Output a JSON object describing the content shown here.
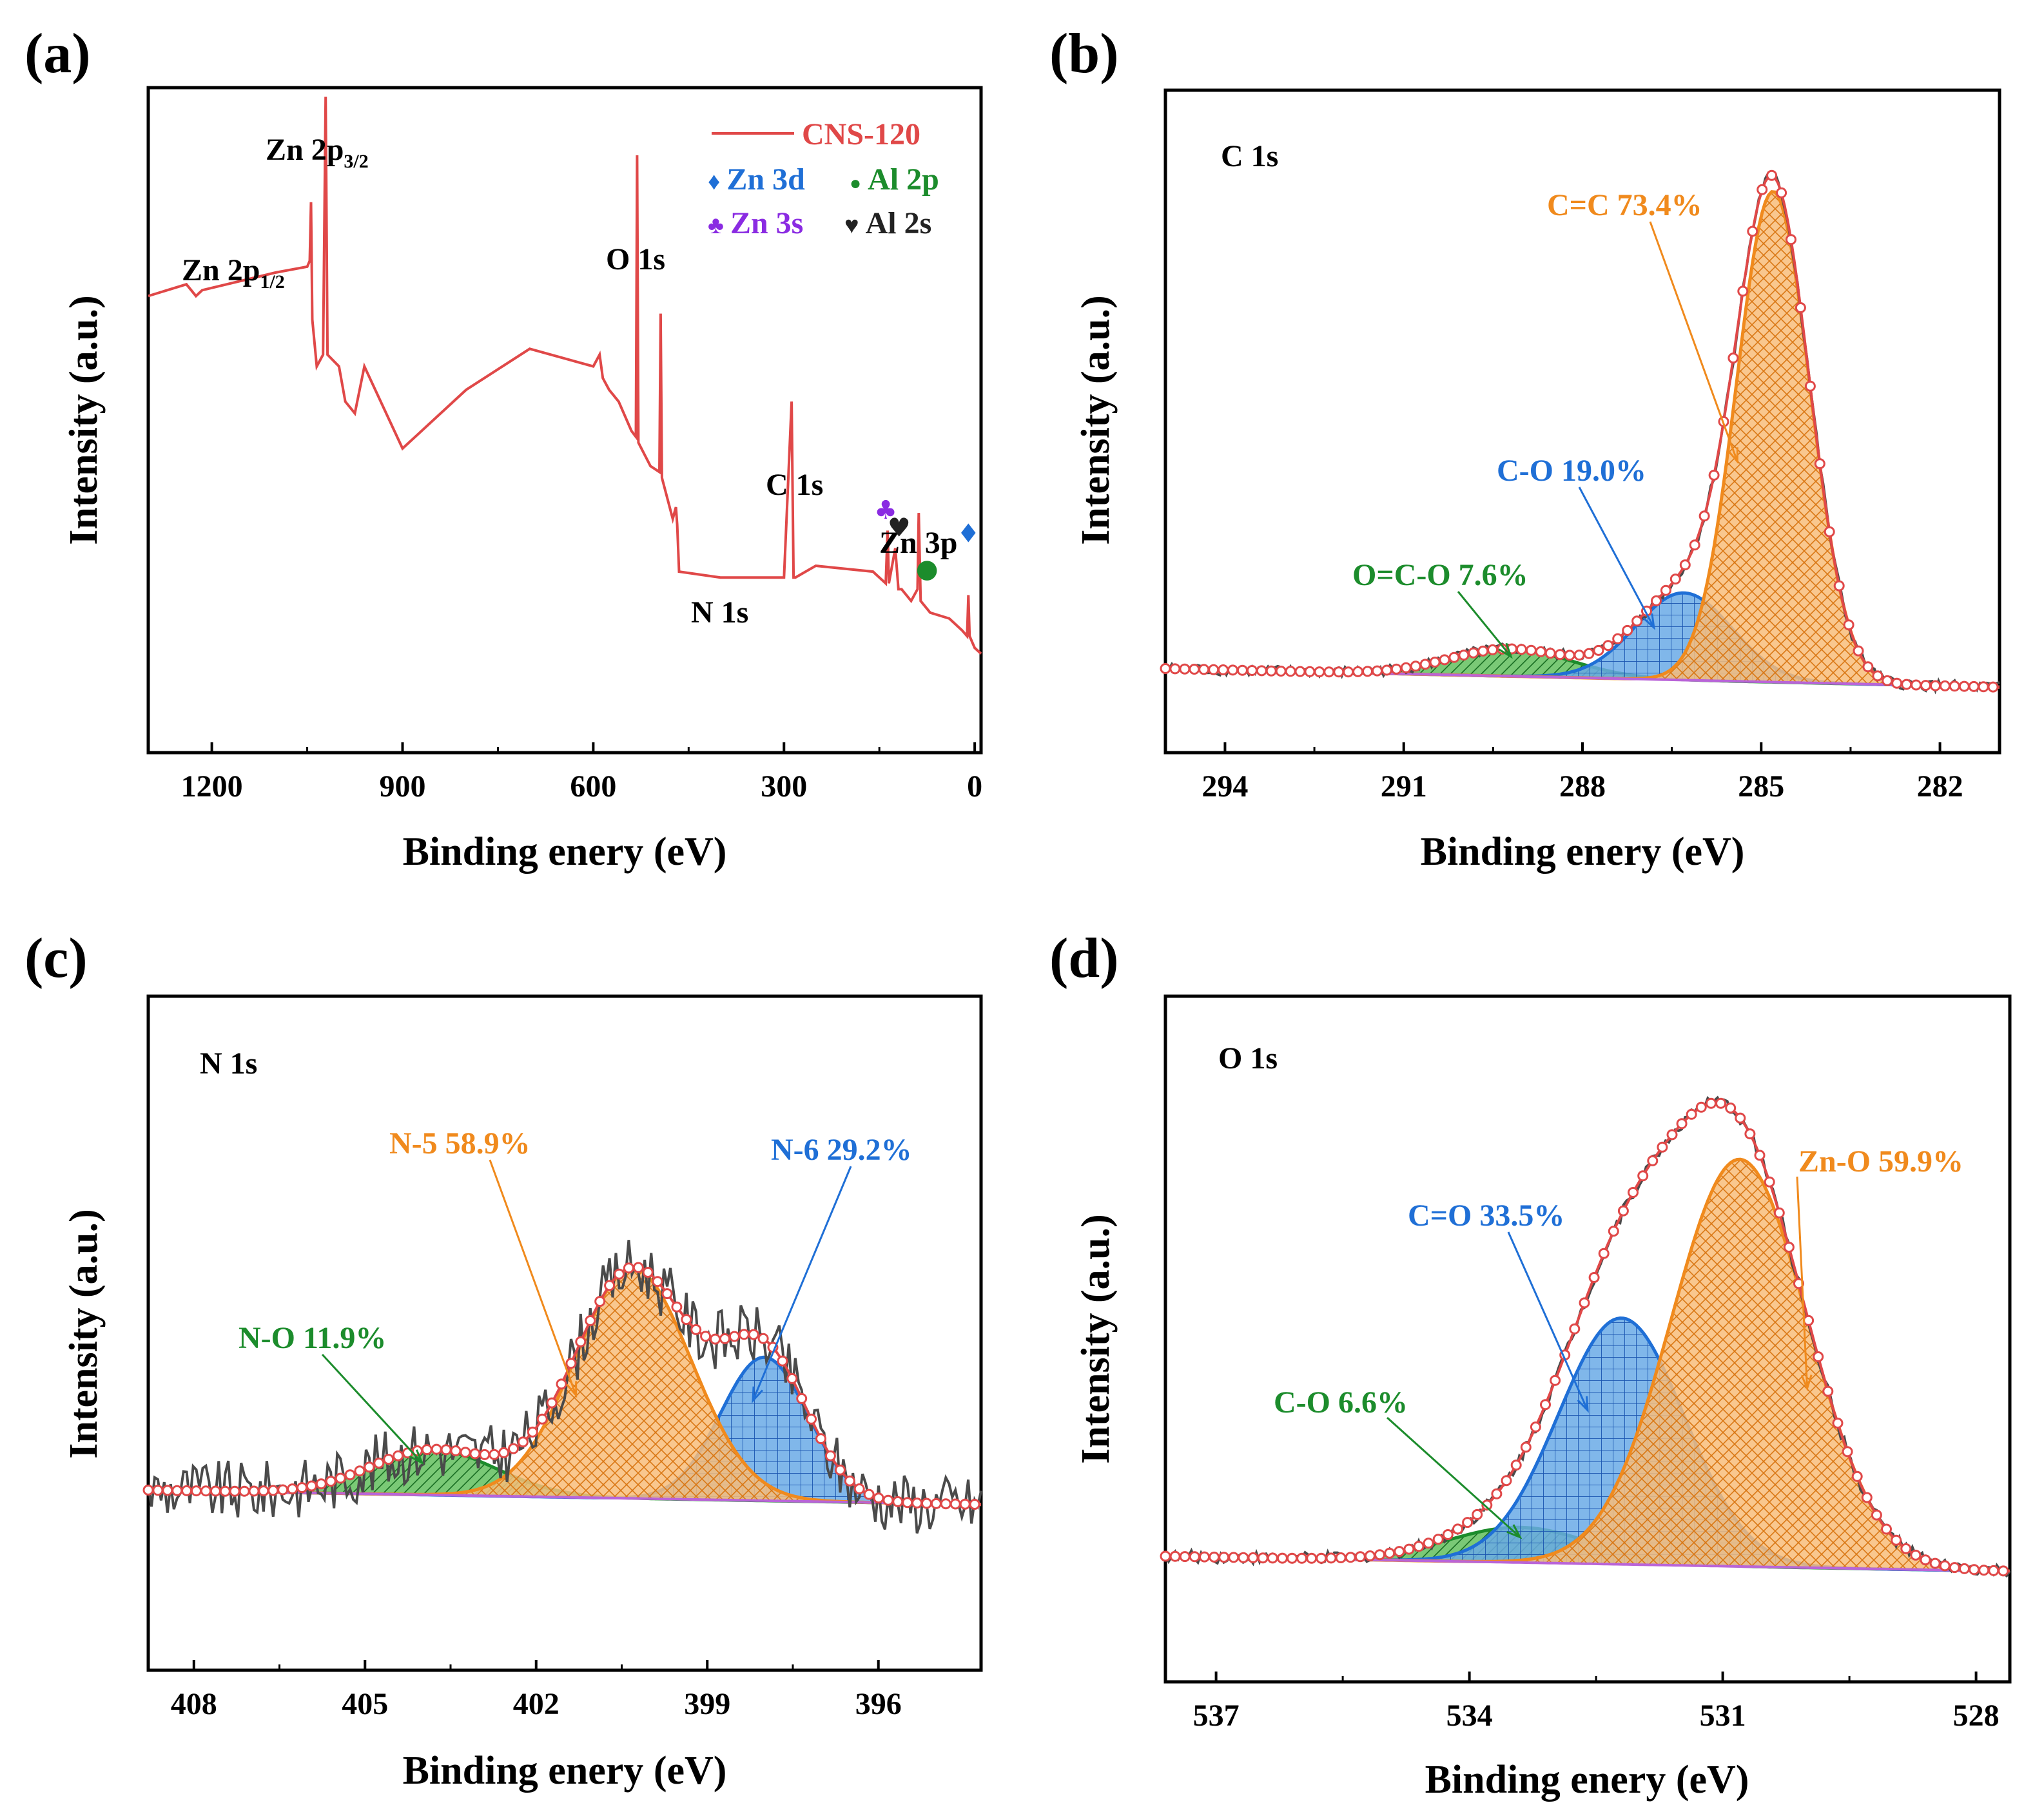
{
  "chart_data": [
    {
      "type": "line",
      "panel": "(a)",
      "title": "",
      "xlabel": "Binding enery (eV)",
      "ylabel": "Intensity (a.u.)",
      "xlim": [
        1300,
        -10
      ],
      "xticks": [
        "1200",
        "900",
        "600",
        "300",
        "0"
      ],
      "xtick_values": [
        1200,
        900,
        600,
        300,
        0
      ],
      "ylim": [
        0,
        100
      ],
      "legend": [
        {
          "label": "CNS-120",
          "color": "#e04848"
        },
        {
          "label": "Zn 3d",
          "symbol": "♦",
          "color": "#1f6fd6"
        },
        {
          "label": "Al 2p",
          "symbol": "●",
          "color": "#1c8c2c"
        },
        {
          "label": "Zn 3s",
          "symbol": "♣",
          "color": "#8a2be2"
        },
        {
          "label": "Al 2s",
          "symbol": "♥",
          "color": "#222222"
        }
      ],
      "peak_labels": [
        {
          "text": "Zn 2p",
          "sub": "1/2",
          "x": 1044
        },
        {
          "text": "Zn 2p",
          "sub": "3/2",
          "x": 1021
        },
        {
          "text": "O 1s",
          "x": 531
        },
        {
          "text": "C 1s",
          "x": 285
        },
        {
          "text": "N 1s",
          "x": 400
        },
        {
          "text": "Zn 3p",
          "x": 88
        }
      ],
      "markers": [
        {
          "symbol": "♦",
          "x": 10,
          "y": 24,
          "color": "#1f6fd6"
        },
        {
          "symbol": "●",
          "x": 75,
          "y": 18,
          "color": "#1c8c2c"
        },
        {
          "symbol": "♣",
          "x": 140,
          "y": 28,
          "color": "#8a2be2"
        },
        {
          "symbol": "♥",
          "x": 119,
          "y": 25,
          "color": "#222222"
        }
      ],
      "series": [
        {
          "name": "CNS-120",
          "color": "#e04848",
          "x": [
            1300,
            1240,
            1225,
            1215,
            1100,
            1050,
            1046,
            1044,
            1042,
            1035,
            1025,
            1021,
            1018,
            1000,
            990,
            975,
            960,
            900,
            800,
            700,
            600,
            590,
            585,
            575,
            560,
            540,
            533,
            531,
            529,
            510,
            496,
            494,
            492,
            475,
            470,
            468,
            465,
            400,
            300,
            288,
            285,
            282,
            250,
            160,
            140,
            137,
            135,
            125,
            120,
            115,
            100,
            90,
            88,
            85,
            70,
            40,
            20,
            12,
            10,
            8,
            0,
            -10
          ],
          "y": [
            66,
            68,
            66,
            67,
            70,
            71,
            72,
            82,
            62,
            54,
            56,
            100,
            56,
            54,
            48,
            46,
            54,
            40,
            50,
            57,
            54,
            56,
            52,
            50,
            48,
            43,
            42,
            90,
            41,
            37,
            36,
            63,
            35,
            28,
            30,
            27,
            19,
            18,
            18,
            48,
            18,
            18,
            20,
            19,
            17,
            26,
            17,
            23,
            16,
            16,
            14,
            16,
            29,
            14,
            12,
            11,
            9,
            8,
            15,
            8,
            6,
            5
          ]
        }
      ]
    },
    {
      "type": "line",
      "panel": "(b)",
      "title": "C 1s",
      "xlabel": "Binding enery (eV)",
      "ylabel": "Intensity (a.u.)",
      "xlim": [
        295,
        281
      ],
      "xticks": [
        "294",
        "291",
        "288",
        "285",
        "282"
      ],
      "xtick_values": [
        294,
        291,
        288,
        285,
        282
      ],
      "ylim": [
        0,
        100
      ],
      "baseline": {
        "start": 3.6,
        "end": 0.2,
        "color": "#b964d8"
      },
      "components": [
        {
          "name": "C=C",
          "label": "C=C 73.4%",
          "percent": 73.4,
          "center": 284.8,
          "amplitude": 90,
          "fwhm": 1.45,
          "color": "#f08a1d",
          "fill": "#f8bd7a",
          "pattern": "cross"
        },
        {
          "name": "C-O",
          "label": "C-O 19.0%",
          "percent": 19.0,
          "center": 286.3,
          "amplitude": 16,
          "fwhm": 1.9,
          "color": "#1f6fd6",
          "fill": "#6aaae6",
          "pattern": "grid"
        },
        {
          "name": "O=C-O",
          "label": "O=C-O 7.6%",
          "percent": 7.6,
          "center": 289.2,
          "amplitude": 5,
          "fwhm": 2.4,
          "color": "#1c8c2c",
          "fill": "#63c05e",
          "pattern": "diag"
        }
      ],
      "annotations": [
        {
          "text": "C=C 73.4%",
          "color": "#f08a1d",
          "to": 285.4
        },
        {
          "text": "C-O 19.0%",
          "color": "#1f6fd6",
          "to": 286.8
        },
        {
          "text": "O=C-O 7.6%",
          "color": "#1c8c2c",
          "to": 289.2
        }
      ]
    },
    {
      "type": "line",
      "panel": "(c)",
      "title": "N 1s",
      "xlabel": "Binding enery (eV)",
      "ylabel": "Intensity (a.u.)",
      "xlim": [
        408.8,
        394.2
      ],
      "xticks": [
        "408",
        "405",
        "402",
        "399",
        "396"
      ],
      "xtick_values": [
        408,
        405,
        402,
        399,
        396
      ],
      "ylim": [
        0,
        100
      ],
      "baseline": {
        "start": 10,
        "end": 6.5,
        "color": "#b964d8"
      },
      "components": [
        {
          "name": "N-5",
          "label": "N-5 58.9%",
          "percent": 58.9,
          "center": 400.3,
          "amplitude": 56,
          "fwhm": 2.4,
          "color": "#f08a1d",
          "fill": "#f8bd7a",
          "pattern": "cross"
        },
        {
          "name": "N-6",
          "label": "N-6 29.2%",
          "percent": 29.2,
          "center": 398.0,
          "amplitude": 35,
          "fwhm": 1.8,
          "color": "#1f6fd6",
          "fill": "#6aaae6",
          "pattern": "grid"
        },
        {
          "name": "N-O",
          "label": "N-O 11.9%",
          "percent": 11.9,
          "center": 403.8,
          "amplitude": 11,
          "fwhm": 2.6,
          "color": "#1c8c2c",
          "fill": "#63c05e",
          "pattern": "diag"
        }
      ],
      "annotations": [
        {
          "text": "N-5 58.9%",
          "color": "#f08a1d",
          "to": 401.3
        },
        {
          "text": "N-6 29.2%",
          "color": "#1f6fd6",
          "to": 398.2
        },
        {
          "text": "N-O 11.9%",
          "color": "#1c8c2c",
          "to": 404.0
        }
      ]
    },
    {
      "type": "line",
      "panel": "(d)",
      "title": "O 1s",
      "xlabel": "Binding enery (eV)",
      "ylabel": "Intensity (a.u.)",
      "xlim": [
        537.6,
        527.6
      ],
      "xticks": [
        "537",
        "534",
        "531",
        "528"
      ],
      "xtick_values": [
        537,
        534,
        531,
        528
      ],
      "ylim": [
        0,
        100
      ],
      "baseline": {
        "start": 3.2,
        "end": 0.2,
        "color": "#b964d8"
      },
      "components": [
        {
          "name": "Zn-O",
          "label": "Zn-O 59.9%",
          "percent": 59.9,
          "center": 530.8,
          "amplitude": 81,
          "fwhm": 1.9,
          "color": "#f08a1d",
          "fill": "#f8bd7a",
          "pattern": "cross"
        },
        {
          "name": "C=O",
          "label": "C=O 33.5%",
          "percent": 33.5,
          "center": 532.2,
          "amplitude": 49,
          "fwhm": 1.75,
          "color": "#1f6fd6",
          "fill": "#6aaae6",
          "pattern": "grid"
        },
        {
          "name": "C-O",
          "label": "C-O 6.6%",
          "percent": 6.6,
          "center": 533.4,
          "amplitude": 7,
          "fwhm": 2.0,
          "color": "#1c8c2c",
          "fill": "#63c05e",
          "pattern": "diag"
        }
      ],
      "annotations": [
        {
          "text": "C=O 33.5%",
          "color": "#1f6fd6",
          "to": 532.6
        },
        {
          "text": "Zn-O 59.9%",
          "color": "#f08a1d",
          "to": 530.0
        },
        {
          "text": "C-O 6.6%",
          "color": "#1c8c2c",
          "to": 533.4
        }
      ]
    }
  ]
}
